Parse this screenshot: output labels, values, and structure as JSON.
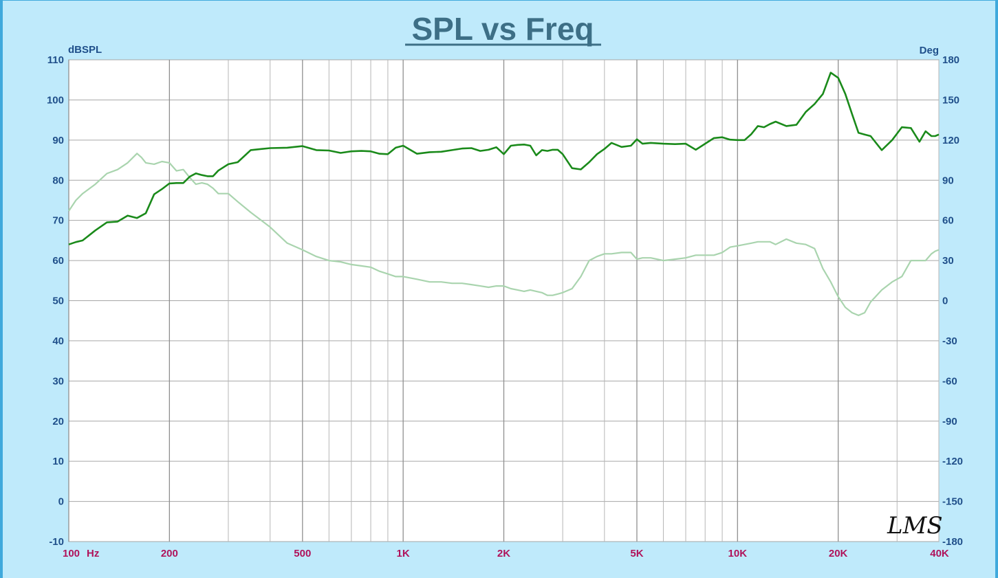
{
  "chart_data": {
    "type": "line",
    "title": "SPL vs Freq",
    "ylabel": "dBSPL",
    "y2label": "Deg",
    "xunit": "Hz",
    "logo": "LMS",
    "xscale": "log",
    "xlim": [
      100,
      40000
    ],
    "ylim": [
      -10,
      110
    ],
    "y2lim": [
      -180,
      180
    ],
    "grid": true,
    "yticks": [
      110,
      100,
      90,
      80,
      70,
      60,
      50,
      40,
      30,
      20,
      10,
      0,
      -10
    ],
    "y2ticks": [
      180,
      150,
      120,
      90,
      60,
      30,
      0,
      -30,
      -60,
      -90,
      -120,
      -150,
      -180
    ],
    "xtick_labels": [
      {
        "value": 100,
        "label": "100"
      },
      {
        "value": 200,
        "label": "200"
      },
      {
        "value": 500,
        "label": "500"
      },
      {
        "value": 1000,
        "label": "1K"
      },
      {
        "value": 2000,
        "label": "2K"
      },
      {
        "value": 5000,
        "label": "5K"
      },
      {
        "value": 10000,
        "label": "10K"
      },
      {
        "value": 20000,
        "label": "20K"
      },
      {
        "value": 40000,
        "label": "40K"
      }
    ],
    "colors": {
      "spl": "#1a8a1a",
      "phase": "#a9d4ae",
      "grid": "#a6a6a6",
      "plot_bg": "#ffffff",
      "tick_y": "#1f4f8a",
      "tick_x": "#b0125a"
    },
    "series": [
      {
        "axis": "left",
        "x": [
          100,
          105,
          110,
          120,
          130,
          140,
          150,
          160,
          165,
          170,
          180,
          190,
          200,
          210,
          220,
          230,
          240,
          250,
          260,
          270,
          280,
          300,
          320,
          350,
          400,
          450,
          500,
          550,
          600,
          650,
          700,
          750,
          800,
          850,
          900,
          950,
          1000,
          1100,
          1200,
          1300,
          1400,
          1500,
          1600,
          1700,
          1800,
          1900,
          2000,
          2100,
          2200,
          2300,
          2400,
          2500,
          2600,
          2700,
          2800,
          2900,
          3000,
          3200,
          3400,
          3600,
          3800,
          4000,
          4200,
          4500,
          4800,
          5000,
          5200,
          5500,
          6000,
          6500,
          7000,
          7500,
          8000,
          8500,
          9000,
          9500,
          10000,
          10500,
          11000,
          11500,
          12000,
          12500,
          13000,
          14000,
          15000,
          16000,
          17000,
          18000,
          19000,
          20000,
          21000,
          22000,
          23000,
          24000,
          25000,
          27000,
          29000,
          31000,
          33000,
          35000,
          36500,
          38000,
          39000,
          40000
        ],
        "y": [
          64.0,
          64.6,
          65.0,
          67.5,
          69.5,
          69.7,
          71.2,
          70.6,
          71.2,
          71.8,
          76.5,
          77.8,
          79.2,
          79.3,
          79.3,
          80.9,
          81.7,
          81.3,
          81.0,
          81.0,
          82.4,
          84.0,
          84.5,
          87.5,
          88.0,
          88.1,
          88.5,
          87.5,
          87.4,
          86.8,
          87.2,
          87.3,
          87.2,
          86.6,
          86.5,
          88.1,
          88.6,
          86.6,
          87.0,
          87.1,
          87.5,
          87.9,
          88.0,
          87.3,
          87.6,
          88.2,
          86.5,
          88.6,
          88.8,
          88.9,
          88.6,
          86.2,
          87.5,
          87.3,
          87.6,
          87.6,
          86.5,
          83.0,
          82.7,
          84.5,
          86.5,
          87.8,
          89.3,
          88.3,
          88.6,
          90.2,
          89.1,
          89.3,
          89.1,
          89.0,
          89.1,
          87.6,
          89.1,
          90.5,
          90.7,
          90.1,
          90.0,
          90.0,
          91.5,
          93.5,
          93.2,
          94.0,
          94.6,
          93.5,
          93.8,
          97.0,
          99.0,
          101.5,
          106.8,
          105.5,
          101.5,
          96.5,
          91.8,
          91.4,
          91.0,
          87.5,
          90.0,
          93.2,
          93.0,
          89.6,
          92.2,
          91.0,
          91.0,
          91.4
        ]
      },
      {
        "axis": "right",
        "x": [
          100,
          105,
          110,
          120,
          130,
          140,
          150,
          160,
          165,
          170,
          180,
          190,
          200,
          210,
          220,
          230,
          240,
          250,
          260,
          270,
          280,
          300,
          320,
          350,
          400,
          450,
          500,
          550,
          600,
          650,
          700,
          750,
          800,
          850,
          900,
          950,
          1000,
          1100,
          1200,
          1300,
          1400,
          1500,
          1600,
          1700,
          1800,
          1900,
          2000,
          2100,
          2200,
          2300,
          2400,
          2500,
          2600,
          2700,
          2800,
          2900,
          3000,
          3200,
          3400,
          3600,
          3800,
          4000,
          4200,
          4500,
          4800,
          5000,
          5200,
          5500,
          6000,
          6500,
          7000,
          7500,
          8000,
          8500,
          9000,
          9500,
          10000,
          10500,
          11000,
          11500,
          12000,
          12500,
          13000,
          14000,
          15000,
          16000,
          17000,
          18000,
          19000,
          20000,
          21000,
          22000,
          23000,
          24000,
          25000,
          27000,
          29000,
          31000,
          33000,
          35000,
          36500,
          38000,
          39000,
          40000
        ],
        "y": [
          67,
          75,
          80,
          87,
          95,
          98,
          103,
          110,
          107,
          103,
          102,
          104,
          103,
          97,
          98,
          92,
          87,
          88,
          87,
          84,
          80,
          80,
          74,
          66,
          55,
          43,
          38,
          33,
          30,
          29,
          27,
          26,
          25,
          22,
          20,
          18,
          18,
          16,
          14,
          14,
          13,
          13,
          12,
          11,
          10,
          11,
          11,
          9,
          8,
          7,
          8,
          7,
          6,
          4,
          4,
          5,
          6,
          9,
          18,
          30,
          33,
          35,
          35,
          36,
          36,
          31,
          32,
          32,
          30,
          31,
          32,
          34,
          34,
          34,
          36,
          40,
          41,
          42,
          43,
          44,
          44,
          44,
          42,
          46,
          43,
          42,
          39,
          24,
          14,
          3,
          -5,
          -9,
          -11,
          -9,
          -1,
          8,
          14,
          18,
          30,
          30,
          30,
          35,
          37,
          38
        ]
      }
    ]
  }
}
